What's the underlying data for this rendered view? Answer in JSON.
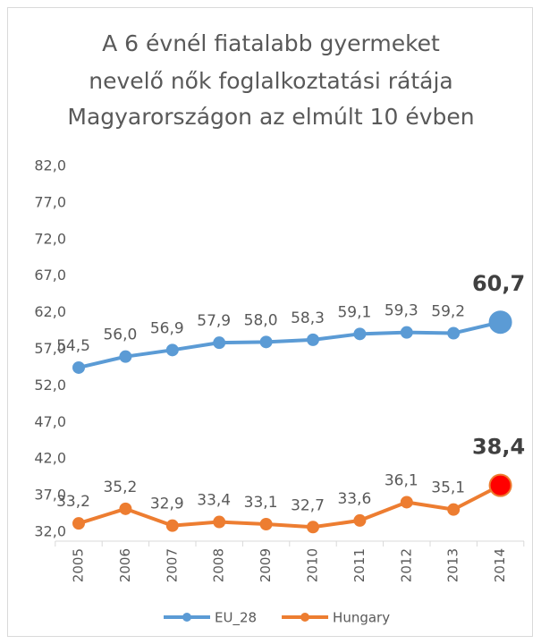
{
  "chart_data": {
    "type": "line",
    "title": [
      "A 6 évnél fiatalabb gyermeket",
      "nevelő nők foglalkoztatási rátája",
      "Magyarországon az elmúlt 10 évben"
    ],
    "categories": [
      "2005",
      "2006",
      "2007",
      "2008",
      "2009",
      "2010",
      "2011",
      "2012",
      "2013",
      "2014"
    ],
    "series": [
      {
        "name": "EU_28",
        "color": "#5b9bd5",
        "values": [
          54.5,
          56.0,
          56.9,
          57.9,
          58.0,
          58.3,
          59.1,
          59.3,
          59.2,
          60.7
        ],
        "value_labels": [
          "54,5",
          "56,0",
          "56,9",
          "57,9",
          "58,0",
          "58,3",
          "59,1",
          "59,3",
          "59,2",
          "60,7"
        ]
      },
      {
        "name": "Hungary",
        "color": "#ed7d31",
        "values": [
          33.2,
          35.2,
          32.9,
          33.4,
          33.1,
          32.7,
          33.6,
          36.1,
          35.1,
          38.4
        ],
        "value_labels": [
          "33,2",
          "35,2",
          "32,9",
          "33,4",
          "33,1",
          "32,7",
          "33,6",
          "36,1",
          "35,1",
          "38,4"
        ],
        "highlight_color": "#ff0000"
      }
    ],
    "ylim": [
      32,
      82
    ],
    "yticks": [
      {
        "value": 32,
        "label": "32,0"
      },
      {
        "value": 37,
        "label": "37,0"
      },
      {
        "value": 42,
        "label": "42,0"
      },
      {
        "value": 47,
        "label": "47,0"
      },
      {
        "value": 52,
        "label": "52,0"
      },
      {
        "value": 57,
        "label": "57,0"
      },
      {
        "value": 62,
        "label": "62,0"
      },
      {
        "value": 67,
        "label": "67,0"
      },
      {
        "value": 72,
        "label": "72,0"
      },
      {
        "value": 77,
        "label": "77,0"
      },
      {
        "value": 82,
        "label": "82,0"
      }
    ],
    "grid": false,
    "legend": "bottom"
  }
}
